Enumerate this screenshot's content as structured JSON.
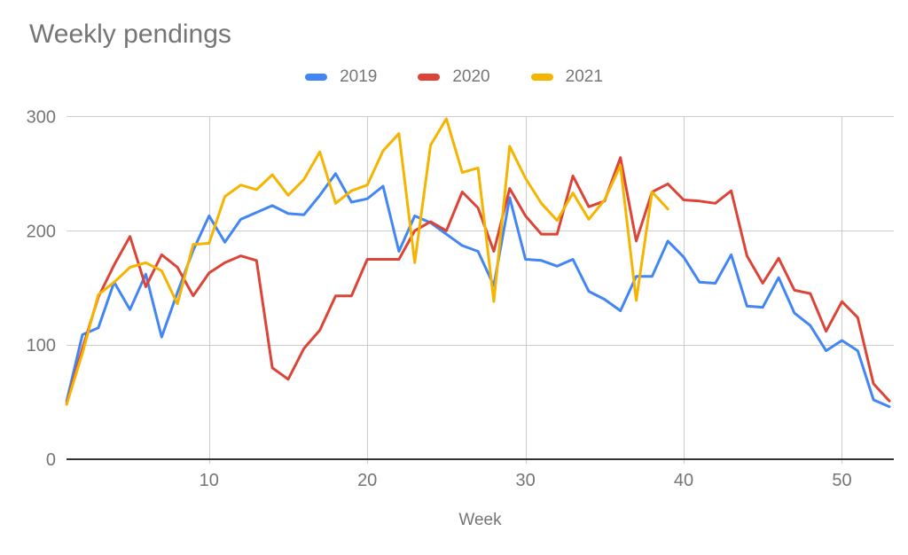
{
  "title": "Weekly pendings",
  "legend": {
    "items": [
      {
        "label": "2019",
        "color": "#4285F4"
      },
      {
        "label": "2020",
        "color": "#DB4437"
      },
      {
        "label": "2021",
        "color": "#F4B400"
      }
    ]
  },
  "x_axis": {
    "label": "Week",
    "tick_labels": [
      "10",
      "20",
      "30",
      "40",
      "50"
    ],
    "tick_weeks": [
      10,
      20,
      30,
      40,
      50
    ]
  },
  "y_axis": {
    "tick_labels": [
      "0",
      "100",
      "200",
      "300"
    ],
    "tick_values": [
      0,
      100,
      200,
      300
    ]
  },
  "colors": {
    "title_text": "#757575",
    "axis_text": "#757575",
    "gridline": "#cccccc",
    "axis_line": "#333333",
    "background": "#ffffff"
  },
  "chart_data": {
    "type": "line",
    "title": "Weekly pendings",
    "xlabel": "Week",
    "ylabel": "",
    "x_range": [
      1,
      53
    ],
    "ylim": [
      0,
      300
    ],
    "grid": true,
    "legend_position": "top",
    "x": [
      1,
      2,
      3,
      4,
      5,
      6,
      7,
      8,
      9,
      10,
      11,
      12,
      13,
      14,
      15,
      16,
      17,
      18,
      19,
      20,
      21,
      22,
      23,
      24,
      25,
      26,
      27,
      28,
      29,
      30,
      31,
      32,
      33,
      34,
      35,
      36,
      37,
      38,
      39,
      40,
      41,
      42,
      43,
      44,
      45,
      46,
      47,
      48,
      49,
      50,
      51,
      52,
      53
    ],
    "series": [
      {
        "name": "2019",
        "color": "#4285F4",
        "values": [
          51,
          109,
          115,
          155,
          131,
          162,
          107,
          146,
          183,
          213,
          190,
          210,
          216,
          222,
          215,
          214,
          231,
          250,
          225,
          228,
          239,
          182,
          213,
          207,
          197,
          187,
          182,
          152,
          229,
          175,
          174,
          169,
          175,
          147,
          140,
          130,
          160,
          160,
          191,
          177,
          155,
          154,
          179,
          134,
          133,
          159,
          128,
          117,
          95,
          104,
          95,
          52,
          46
        ]
      },
      {
        "name": "2020",
        "color": "#DB4437",
        "values": [
          49,
          97,
          142,
          170,
          195,
          151,
          179,
          168,
          143,
          163,
          172,
          178,
          174,
          80,
          70,
          97,
          113,
          143,
          143,
          175,
          175,
          175,
          200,
          208,
          200,
          234,
          220,
          182,
          237,
          213,
          197,
          197,
          248,
          221,
          226,
          264,
          191,
          234,
          241,
          227,
          226,
          224,
          235,
          178,
          154,
          176,
          148,
          145,
          112,
          138,
          124,
          66,
          51
        ]
      },
      {
        "name": "2021",
        "color": "#F4B400",
        "values": [
          48,
          93,
          144,
          155,
          168,
          172,
          165,
          136,
          188,
          189,
          230,
          240,
          236,
          249,
          231,
          245,
          269,
          224,
          235,
          240,
          270,
          285,
          172,
          275,
          298,
          251,
          255,
          138,
          274,
          246,
          224,
          209,
          233,
          210,
          227,
          257,
          139,
          234,
          219
        ]
      }
    ]
  }
}
